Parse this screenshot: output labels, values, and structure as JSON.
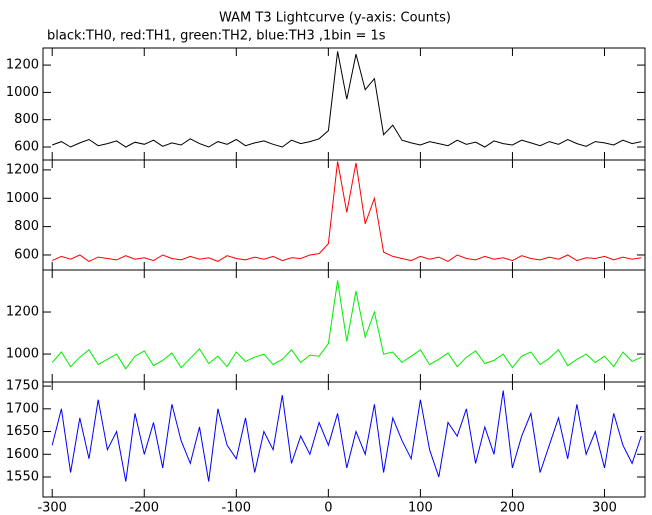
{
  "title": "WAM T3 Lightcurve (y-axis: Counts)",
  "subtitle": "black:TH0, red:TH1, green:TH2, blue:TH3 ,1bin = 1s",
  "chart_data": [
    {
      "type": "line",
      "x": [
        -300,
        -290,
        -280,
        -270,
        -260,
        -250,
        -240,
        -230,
        -220,
        -210,
        -200,
        -190,
        -180,
        -170,
        -160,
        -150,
        -140,
        -130,
        -120,
        -110,
        -100,
        -90,
        -80,
        -70,
        -60,
        -50,
        -40,
        -30,
        -20,
        -10,
        0,
        10,
        20,
        30,
        40,
        50,
        60,
        70,
        80,
        90,
        100,
        110,
        120,
        130,
        140,
        150,
        160,
        170,
        180,
        190,
        200,
        210,
        220,
        230,
        240,
        250,
        260,
        270,
        280,
        290,
        300,
        310,
        320,
        330,
        340
      ],
      "series": [
        {
          "color": "#000000",
          "values": [
            615,
            640,
            600,
            630,
            655,
            610,
            625,
            645,
            600,
            635,
            620,
            650,
            605,
            630,
            615,
            660,
            625,
            600,
            640,
            620,
            655,
            610,
            630,
            645,
            620,
            600,
            650,
            625,
            640,
            660,
            720,
            1300,
            950,
            1280,
            1020,
            1100,
            690,
            760,
            650,
            630,
            615,
            640,
            625,
            610,
            650,
            620,
            635,
            600,
            645,
            625,
            615,
            650,
            630,
            610,
            640,
            620,
            655,
            625,
            605,
            640,
            630,
            615,
            650,
            625,
            640
          ]
        }
      ],
      "xlim": [
        -310,
        344
      ],
      "ylim": [
        505,
        1325
      ],
      "yticks": [
        600,
        800,
        1000,
        1200
      ]
    },
    {
      "type": "line",
      "x": [
        -300,
        -290,
        -280,
        -270,
        -260,
        -250,
        -240,
        -230,
        -220,
        -210,
        -200,
        -190,
        -180,
        -170,
        -160,
        -150,
        -140,
        -130,
        -120,
        -110,
        -100,
        -90,
        -80,
        -70,
        -60,
        -50,
        -40,
        -30,
        -20,
        -10,
        0,
        10,
        20,
        30,
        40,
        50,
        60,
        70,
        80,
        90,
        100,
        110,
        120,
        130,
        140,
        150,
        160,
        170,
        180,
        190,
        200,
        210,
        220,
        230,
        240,
        250,
        260,
        270,
        280,
        290,
        300,
        310,
        320,
        330,
        340
      ],
      "series": [
        {
          "color": "#ff0000",
          "values": [
            560,
            590,
            570,
            600,
            555,
            585,
            575,
            565,
            595,
            570,
            580,
            560,
            600,
            575,
            565,
            590,
            570,
            580,
            555,
            595,
            575,
            565,
            585,
            570,
            590,
            560,
            580,
            575,
            600,
            610,
            680,
            1260,
            900,
            1250,
            820,
            1000,
            620,
            590,
            575,
            560,
            590,
            570,
            585,
            555,
            600,
            575,
            565,
            590,
            570,
            580,
            560,
            595,
            575,
            565,
            585,
            570,
            600,
            560,
            580,
            575,
            590,
            565,
            585,
            570,
            580
          ]
        }
      ],
      "xlim": [
        -310,
        344
      ],
      "ylim": [
        494,
        1270
      ],
      "yticks": [
        600,
        800,
        1000,
        1200
      ]
    },
    {
      "type": "line",
      "x": [
        -300,
        -290,
        -280,
        -270,
        -260,
        -250,
        -240,
        -230,
        -220,
        -210,
        -200,
        -190,
        -180,
        -170,
        -160,
        -150,
        -140,
        -130,
        -120,
        -110,
        -100,
        -90,
        -80,
        -70,
        -60,
        -50,
        -40,
        -30,
        -20,
        -10,
        0,
        10,
        20,
        30,
        40,
        50,
        60,
        70,
        80,
        90,
        100,
        110,
        120,
        130,
        140,
        150,
        160,
        170,
        180,
        190,
        200,
        210,
        220,
        230,
        240,
        250,
        260,
        270,
        280,
        290,
        300,
        310,
        320,
        330,
        340
      ],
      "series": [
        {
          "color": "#00ee00",
          "values": [
            960,
            1010,
            940,
            985,
            1020,
            950,
            975,
            1000,
            930,
            990,
            1015,
            945,
            970,
            1005,
            935,
            980,
            1025,
            955,
            990,
            940,
            1010,
            965,
            985,
            1000,
            950,
            975,
            1020,
            960,
            995,
            990,
            1050,
            1350,
            1060,
            1300,
            1080,
            1200,
            1000,
            1010,
            960,
            990,
            1020,
            950,
            975,
            1005,
            940,
            985,
            1015,
            955,
            970,
            1000,
            935,
            990,
            1010,
            950,
            980,
            1020,
            945,
            975,
            1000,
            960,
            990,
            940,
            1010,
            965,
            985
          ]
        }
      ],
      "xlim": [
        -310,
        344
      ],
      "ylim": [
        867,
        1400
      ],
      "yticks": [
        1000,
        1200
      ]
    },
    {
      "type": "line",
      "x": [
        -300,
        -290,
        -280,
        -270,
        -260,
        -250,
        -240,
        -230,
        -220,
        -210,
        -200,
        -190,
        -180,
        -170,
        -160,
        -150,
        -140,
        -130,
        -120,
        -110,
        -100,
        -90,
        -80,
        -70,
        -60,
        -50,
        -40,
        -30,
        -20,
        -10,
        0,
        10,
        20,
        30,
        40,
        50,
        60,
        70,
        80,
        90,
        100,
        110,
        120,
        130,
        140,
        150,
        160,
        170,
        180,
        190,
        200,
        210,
        220,
        230,
        240,
        250,
        260,
        270,
        280,
        290,
        300,
        310,
        320,
        330,
        340
      ],
      "series": [
        {
          "color": "#0000ff",
          "values": [
            1620,
            1700,
            1560,
            1680,
            1590,
            1720,
            1610,
            1650,
            1540,
            1690,
            1600,
            1670,
            1570,
            1710,
            1630,
            1580,
            1660,
            1540,
            1700,
            1620,
            1590,
            1680,
            1560,
            1650,
            1610,
            1730,
            1580,
            1640,
            1600,
            1670,
            1620,
            1690,
            1570,
            1650,
            1600,
            1710,
            1560,
            1680,
            1630,
            1590,
            1720,
            1610,
            1550,
            1670,
            1640,
            1700,
            1580,
            1660,
            1600,
            1740,
            1570,
            1640,
            1690,
            1560,
            1620,
            1680,
            1590,
            1710,
            1600,
            1650,
            1570,
            1690,
            1620,
            1580,
            1640
          ]
        }
      ],
      "xlim": [
        -310,
        344
      ],
      "ylim": [
        1506,
        1759
      ],
      "yticks": [
        1550,
        1600,
        1650,
        1700,
        1750
      ],
      "xticks": [
        -300,
        -200,
        -100,
        0,
        100,
        200,
        300
      ]
    }
  ]
}
